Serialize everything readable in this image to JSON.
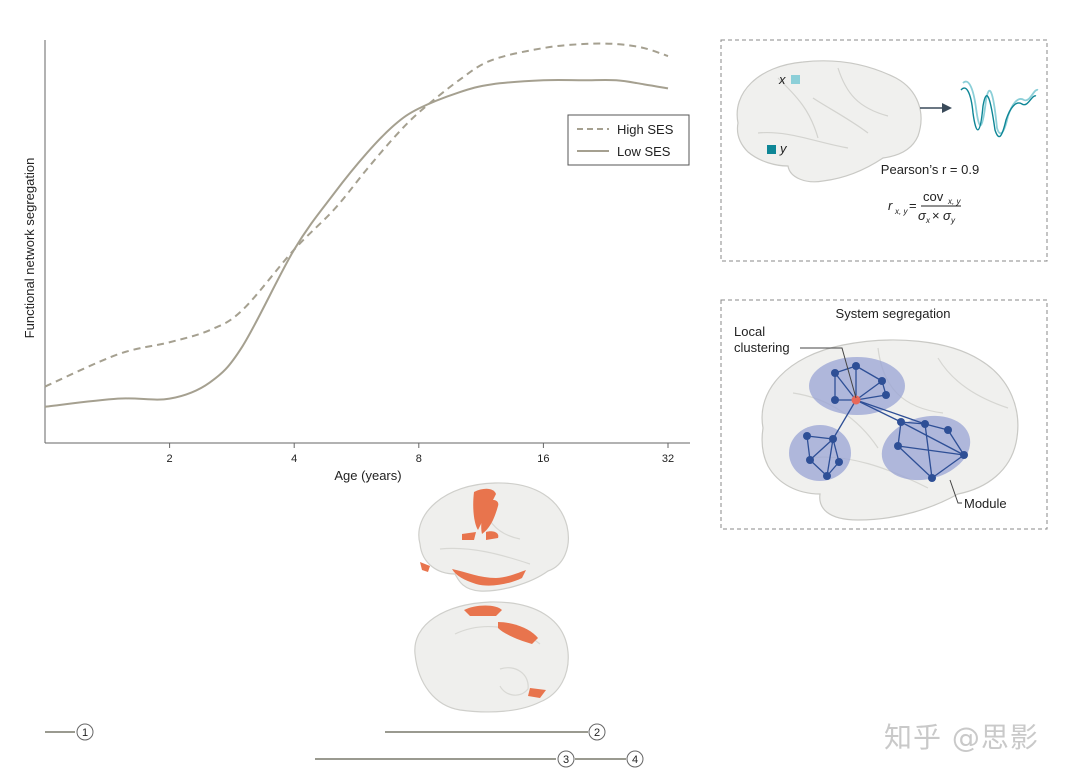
{
  "chart_data": {
    "type": "line",
    "xlabel": "Age (years)",
    "ylabel": "Functional network segregation",
    "x_scale": "log2",
    "x_ticks": [
      "2",
      "4",
      "8",
      "16",
      "32"
    ],
    "legend_position": "top-right",
    "series": [
      {
        "name": "High SES",
        "style": "dashed",
        "color": "#a5a090",
        "points": [
          [
            1,
            0.14
          ],
          [
            1.5,
            0.22
          ],
          [
            2,
            0.25
          ],
          [
            2.5,
            0.28
          ],
          [
            3,
            0.33
          ],
          [
            4,
            0.48
          ],
          [
            5,
            0.58
          ],
          [
            6,
            0.68
          ],
          [
            7,
            0.76
          ],
          [
            8,
            0.82
          ],
          [
            10,
            0.9
          ],
          [
            12,
            0.95
          ],
          [
            16,
            0.98
          ],
          [
            20,
            0.99
          ],
          [
            24,
            0.99
          ],
          [
            28,
            0.98
          ],
          [
            32,
            0.96
          ]
        ]
      },
      {
        "name": "Low SES",
        "style": "solid",
        "color": "#a5a090",
        "points": [
          [
            1,
            0.09
          ],
          [
            1.5,
            0.11
          ],
          [
            2,
            0.11
          ],
          [
            2.5,
            0.15
          ],
          [
            3,
            0.24
          ],
          [
            4,
            0.48
          ],
          [
            5,
            0.62
          ],
          [
            6,
            0.72
          ],
          [
            7,
            0.79
          ],
          [
            8,
            0.83
          ],
          [
            10,
            0.87
          ],
          [
            12,
            0.89
          ],
          [
            16,
            0.9
          ],
          [
            20,
            0.9
          ],
          [
            24,
            0.9
          ],
          [
            28,
            0.89
          ],
          [
            32,
            0.88
          ]
        ]
      }
    ]
  },
  "panel_correlation": {
    "label_x": "x",
    "label_y": "y",
    "pearson": "Pearson’s r = 0.9",
    "formula_lhs": "r",
    "formula_lhs_sub": "x, y",
    "formula_num": "cov",
    "formula_num_sub": "x, y",
    "formula_den": "σ",
    "formula_den_sub1": "x",
    "formula_den_times": "×",
    "formula_den_sub2": "y",
    "colors": {
      "x": "#8ccfd8",
      "y": "#0e8696"
    }
  },
  "panel_segregation": {
    "title": "System segregation",
    "local_label_1": "Local",
    "local_label_2": "clustering",
    "module_label": "Module",
    "colors": {
      "node": "#2e4f96",
      "hub": "#e8685a",
      "module": "#9aa4d4"
    }
  },
  "brain_highlight_color": "#e8744d",
  "timeline": {
    "markers": [
      "1",
      "2",
      "3",
      "4"
    ]
  },
  "watermark": "知乎 @思影"
}
